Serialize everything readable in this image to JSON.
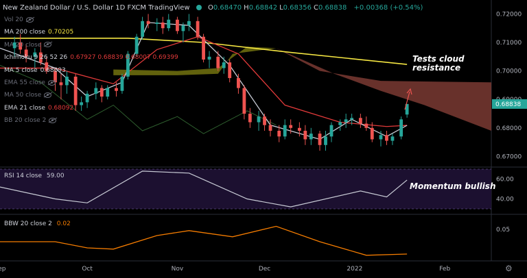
{
  "header": {
    "title": "New Zealand Dollar / U.S. Dollar  1D  FXCM  TradingView",
    "ohlc": [
      {
        "k": "O",
        "v": "0.68470"
      },
      {
        "k": "H",
        "v": "0.68842"
      },
      {
        "k": "L",
        "v": "0.68356"
      },
      {
        "k": "C",
        "v": "0.68838"
      }
    ],
    "change": "+0.00368 (+0.54%)"
  },
  "legend": [
    {
      "label": "Vol 20",
      "value": "",
      "color": "#6a6d78",
      "faded": true
    },
    {
      "label": "MA 200 close",
      "value": "0.70205",
      "color": "#f5e642",
      "faded": false
    },
    {
      "label": "MA 20 close",
      "value": "",
      "color": "#6a6d78",
      "faded": true
    },
    {
      "label": "Ichimoku 9 26 52 26",
      "value": "0.67927  0.68839  0.68007  0.69399",
      "color": "#e23a3a",
      "faded": false
    },
    {
      "label": "MA 5 close",
      "value": "0.68093",
      "color": "#d1d4dc",
      "faded": false
    },
    {
      "label": "EMA 55 close",
      "value": "",
      "color": "#6a6d78",
      "faded": true
    },
    {
      "label": "MA 50 close",
      "value": "",
      "color": "#6a6d78",
      "faded": true
    },
    {
      "label": "EMA 21 close",
      "value": "0.68092",
      "color": "#e23a3a",
      "faded": false
    },
    {
      "label": "BB 20 close 2",
      "value": "",
      "color": "#6a6d78",
      "faded": true
    }
  ],
  "annotations": {
    "cloud_note": "Tests cloud\nresistance",
    "rsi_note": "Momentum bullish"
  },
  "rsi_legend": {
    "label": "RSI 14 close",
    "value": "59.00"
  },
  "bbw_legend": {
    "label": "BBW 20 close 2",
    "value": "0.02"
  },
  "price_axis": {
    "ticks": [
      "0.72000",
      "0.71000",
      "0.70000",
      "0.69000",
      "0.68000",
      "0.67000"
    ],
    "last_price": "0.68838"
  },
  "rsi_axis": {
    "ticks": [
      "60.00",
      "40.00"
    ]
  },
  "bbw_axis": {
    "ticks": [
      "0.05"
    ]
  },
  "time_axis": {
    "ticks": [
      "Sep",
      "Oct",
      "Nov",
      "Dec",
      "2022",
      "Feb"
    ]
  },
  "colors": {
    "up": "#26a69a",
    "down": "#ef5350",
    "ma200": "#f5e642",
    "ema21": "#e23a3a",
    "ma5": "#c9ccd6",
    "rsi": "#c9ccd6",
    "bbw": "#f57c00",
    "cloud_bull": "#8a8a12",
    "cloud_bear": "#7a3a33",
    "accent": "#26a69a"
  },
  "chart_data": [
    {
      "type": "candlestick",
      "title": "New Zealand Dollar / U.S. Dollar 1D FXCM",
      "ylim": [
        0.6665,
        0.7225
      ],
      "x_range": [
        "2021-09-01",
        "2022-02-17"
      ],
      "x_ticks": [
        "Sep",
        "Oct",
        "Nov",
        "Dec",
        "2022",
        "Feb"
      ],
      "candles": [
        {
          "d": "2021-09-06",
          "o": 0.708,
          "h": 0.712,
          "l": 0.705,
          "c": 0.71
        },
        {
          "d": "2021-09-08",
          "o": 0.71,
          "h": 0.713,
          "l": 0.706,
          "c": 0.7075
        },
        {
          "d": "2021-09-10",
          "o": 0.7075,
          "h": 0.7095,
          "l": 0.703,
          "c": 0.705
        },
        {
          "d": "2021-09-13",
          "o": 0.705,
          "h": 0.708,
          "l": 0.701,
          "c": 0.7065
        },
        {
          "d": "2021-09-15",
          "o": 0.7065,
          "h": 0.71,
          "l": 0.702,
          "c": 0.703
        },
        {
          "d": "2021-09-17",
          "o": 0.703,
          "h": 0.705,
          "l": 0.699,
          "c": 0.7
        },
        {
          "d": "2021-09-20",
          "o": 0.7,
          "h": 0.701,
          "l": 0.693,
          "c": 0.696
        },
        {
          "d": "2021-09-22",
          "o": 0.696,
          "h": 0.699,
          "l": 0.69,
          "c": 0.695
        },
        {
          "d": "2021-09-24",
          "o": 0.695,
          "h": 0.7,
          "l": 0.692,
          "c": 0.698
        },
        {
          "d": "2021-09-27",
          "o": 0.698,
          "h": 0.699,
          "l": 0.686,
          "c": 0.688
        },
        {
          "d": "2021-09-29",
          "o": 0.688,
          "h": 0.691,
          "l": 0.686,
          "c": 0.689
        },
        {
          "d": "2021-10-01",
          "o": 0.689,
          "h": 0.693,
          "l": 0.687,
          "c": 0.692
        },
        {
          "d": "2021-10-04",
          "o": 0.692,
          "h": 0.696,
          "l": 0.69,
          "c": 0.694
        },
        {
          "d": "2021-10-06",
          "o": 0.694,
          "h": 0.695,
          "l": 0.689,
          "c": 0.691
        },
        {
          "d": "2021-10-08",
          "o": 0.691,
          "h": 0.695,
          "l": 0.69,
          "c": 0.694
        },
        {
          "d": "2021-10-11",
          "o": 0.694,
          "h": 0.696,
          "l": 0.691,
          "c": 0.693
        },
        {
          "d": "2021-10-13",
          "o": 0.693,
          "h": 0.699,
          "l": 0.692,
          "c": 0.698
        },
        {
          "d": "2021-10-15",
          "o": 0.698,
          "h": 0.707,
          "l": 0.697,
          "c": 0.706
        },
        {
          "d": "2021-10-18",
          "o": 0.706,
          "h": 0.713,
          "l": 0.705,
          "c": 0.712
        },
        {
          "d": "2021-10-20",
          "o": 0.712,
          "h": 0.719,
          "l": 0.711,
          "c": 0.7175
        },
        {
          "d": "2021-10-22",
          "o": 0.7175,
          "h": 0.72,
          "l": 0.715,
          "c": 0.7165
        },
        {
          "d": "2021-10-25",
          "o": 0.7165,
          "h": 0.7185,
          "l": 0.714,
          "c": 0.717
        },
        {
          "d": "2021-10-27",
          "o": 0.717,
          "h": 0.719,
          "l": 0.713,
          "c": 0.715
        },
        {
          "d": "2021-10-29",
          "o": 0.715,
          "h": 0.72,
          "l": 0.714,
          "c": 0.718
        },
        {
          "d": "2021-11-01",
          "o": 0.718,
          "h": 0.719,
          "l": 0.713,
          "c": 0.714
        },
        {
          "d": "2021-11-03",
          "o": 0.714,
          "h": 0.717,
          "l": 0.71,
          "c": 0.716
        },
        {
          "d": "2021-11-05",
          "o": 0.716,
          "h": 0.72,
          "l": 0.714,
          "c": 0.7175
        },
        {
          "d": "2021-11-08",
          "o": 0.7175,
          "h": 0.719,
          "l": 0.711,
          "c": 0.712
        },
        {
          "d": "2021-11-10",
          "o": 0.712,
          "h": 0.713,
          "l": 0.703,
          "c": 0.704
        },
        {
          "d": "2021-11-12",
          "o": 0.704,
          "h": 0.707,
          "l": 0.701,
          "c": 0.705
        },
        {
          "d": "2021-11-15",
          "o": 0.705,
          "h": 0.707,
          "l": 0.7,
          "c": 0.701
        },
        {
          "d": "2021-11-17",
          "o": 0.701,
          "h": 0.705,
          "l": 0.699,
          "c": 0.703
        },
        {
          "d": "2021-11-19",
          "o": 0.703,
          "h": 0.704,
          "l": 0.696,
          "c": 0.6975
        },
        {
          "d": "2021-11-22",
          "o": 0.6975,
          "h": 0.699,
          "l": 0.692,
          "c": 0.694
        },
        {
          "d": "2021-11-24",
          "o": 0.694,
          "h": 0.695,
          "l": 0.683,
          "c": 0.685
        },
        {
          "d": "2021-11-26",
          "o": 0.685,
          "h": 0.687,
          "l": 0.68,
          "c": 0.682
        },
        {
          "d": "2021-11-29",
          "o": 0.682,
          "h": 0.686,
          "l": 0.679,
          "c": 0.684
        },
        {
          "d": "2021-12-01",
          "o": 0.684,
          "h": 0.685,
          "l": 0.679,
          "c": 0.681
        },
        {
          "d": "2021-12-03",
          "o": 0.681,
          "h": 0.683,
          "l": 0.677,
          "c": 0.679
        },
        {
          "d": "2021-12-06",
          "o": 0.679,
          "h": 0.681,
          "l": 0.675,
          "c": 0.677
        },
        {
          "d": "2021-12-08",
          "o": 0.677,
          "h": 0.683,
          "l": 0.676,
          "c": 0.681
        },
        {
          "d": "2021-12-10",
          "o": 0.681,
          "h": 0.683,
          "l": 0.678,
          "c": 0.68
        },
        {
          "d": "2021-12-13",
          "o": 0.68,
          "h": 0.682,
          "l": 0.677,
          "c": 0.679
        },
        {
          "d": "2021-12-15",
          "o": 0.679,
          "h": 0.681,
          "l": 0.674,
          "c": 0.676
        },
        {
          "d": "2021-12-17",
          "o": 0.676,
          "h": 0.68,
          "l": 0.674,
          "c": 0.678
        },
        {
          "d": "2021-12-20",
          "o": 0.678,
          "h": 0.679,
          "l": 0.672,
          "c": 0.674
        },
        {
          "d": "2021-12-22",
          "o": 0.674,
          "h": 0.679,
          "l": 0.672,
          "c": 0.677
        },
        {
          "d": "2021-12-24",
          "o": 0.677,
          "h": 0.682,
          "l": 0.675,
          "c": 0.681
        },
        {
          "d": "2021-12-27",
          "o": 0.681,
          "h": 0.683,
          "l": 0.679,
          "c": 0.682
        },
        {
          "d": "2021-12-29",
          "o": 0.682,
          "h": 0.685,
          "l": 0.68,
          "c": 0.683
        },
        {
          "d": "2021-12-31",
          "o": 0.683,
          "h": 0.685,
          "l": 0.681,
          "c": 0.6835
        },
        {
          "d": "2022-01-03",
          "o": 0.6835,
          "h": 0.685,
          "l": 0.68,
          "c": 0.6815
        },
        {
          "d": "2022-01-05",
          "o": 0.6815,
          "h": 0.684,
          "l": 0.679,
          "c": 0.68
        },
        {
          "d": "2022-01-07",
          "o": 0.68,
          "h": 0.682,
          "l": 0.675,
          "c": 0.676
        },
        {
          "d": "2022-01-10",
          "o": 0.676,
          "h": 0.679,
          "l": 0.6735,
          "c": 0.6775
        },
        {
          "d": "2022-01-12",
          "o": 0.6775,
          "h": 0.679,
          "l": 0.674,
          "c": 0.6755
        },
        {
          "d": "2022-01-14",
          "o": 0.6755,
          "h": 0.678,
          "l": 0.674,
          "c": 0.677
        },
        {
          "d": "2022-01-17",
          "o": 0.677,
          "h": 0.684,
          "l": 0.676,
          "c": 0.683
        },
        {
          "d": "2022-01-19",
          "o": 0.6847,
          "h": 0.6884,
          "l": 0.6836,
          "c": 0.6884
        }
      ]
    },
    {
      "type": "line",
      "ylim": [
        0.6665,
        0.7225
      ],
      "series": [
        {
          "name": "MA 200 close",
          "points": [
            [
              "2021-09-01",
              0.7115
            ],
            [
              "2021-10-15",
              0.7115
            ],
            [
              "2021-11-10",
              0.71
            ],
            [
              "2021-12-10",
              0.7065
            ],
            [
              "2022-01-19",
              0.7023
            ]
          ]
        },
        {
          "name": "EMA 21 close",
          "points": [
            [
              "2021-09-01",
              0.701
            ],
            [
              "2021-09-20",
              0.701
            ],
            [
              "2021-10-10",
              0.6955
            ],
            [
              "2021-10-25",
              0.7075
            ],
            [
              "2021-11-08",
              0.712
            ],
            [
              "2021-11-22",
              0.706
            ],
            [
              "2021-12-08",
              0.688
            ],
            [
              "2021-12-27",
              0.682
            ],
            [
              "2022-01-12",
              0.6805
            ],
            [
              "2022-01-19",
              0.6809
            ]
          ]
        },
        {
          "name": "MA 5 close",
          "points": [
            [
              "2021-09-01",
              0.708
            ],
            [
              "2021-09-20",
              0.701
            ],
            [
              "2021-10-01",
              0.691
            ],
            [
              "2021-10-13",
              0.696
            ],
            [
              "2021-10-22",
              0.717
            ],
            [
              "2021-11-05",
              0.716
            ],
            [
              "2021-11-19",
              0.702
            ],
            [
              "2021-12-03",
              0.681
            ],
            [
              "2021-12-20",
              0.676
            ],
            [
              "2021-12-31",
              0.683
            ],
            [
              "2022-01-12",
              0.677
            ],
            [
              "2022-01-19",
              0.6809
            ]
          ]
        },
        {
          "name": "Ichimoku cloud",
          "points": [
            [
              "2021-10-10",
              0.6985
            ],
            [
              "2021-11-15",
              0.6985
            ],
            [
              "2021-11-20",
              0.706
            ],
            [
              "2021-12-10",
              0.708
            ],
            [
              "2021-12-20",
              0.7
            ],
            [
              "2022-01-10",
              0.696
            ],
            [
              "2022-02-17",
              0.696
            ]
          ]
        }
      ]
    },
    {
      "type": "line",
      "title": "RSI 14 close",
      "ylim": [
        30,
        70
      ],
      "series": [
        {
          "name": "RSI 14 close",
          "points": [
            [
              "2021-09-01",
              52
            ],
            [
              "2021-09-20",
              40
            ],
            [
              "2021-10-01",
              36
            ],
            [
              "2021-10-20",
              68
            ],
            [
              "2021-11-05",
              66
            ],
            [
              "2021-11-25",
              40
            ],
            [
              "2021-12-10",
              32
            ],
            [
              "2022-01-03",
              48
            ],
            [
              "2022-01-12",
              42
            ],
            [
              "2022-01-19",
              59
            ]
          ]
        }
      ]
    },
    {
      "type": "line",
      "title": "BBW 20 close 2",
      "ylim": [
        0.0,
        0.07
      ],
      "series": [
        {
          "name": "BBW 20 close 2",
          "points": [
            [
              "2021-09-01",
              0.03
            ],
            [
              "2021-09-20",
              0.03
            ],
            [
              "2021-10-01",
              0.02
            ],
            [
              "2021-10-10",
              0.018
            ],
            [
              "2021-10-25",
              0.04
            ],
            [
              "2021-11-05",
              0.048
            ],
            [
              "2021-11-20",
              0.038
            ],
            [
              "2021-12-05",
              0.055
            ],
            [
              "2021-12-20",
              0.03
            ],
            [
              "2022-01-05",
              0.008
            ],
            [
              "2022-01-19",
              0.01
            ]
          ]
        }
      ]
    }
  ]
}
